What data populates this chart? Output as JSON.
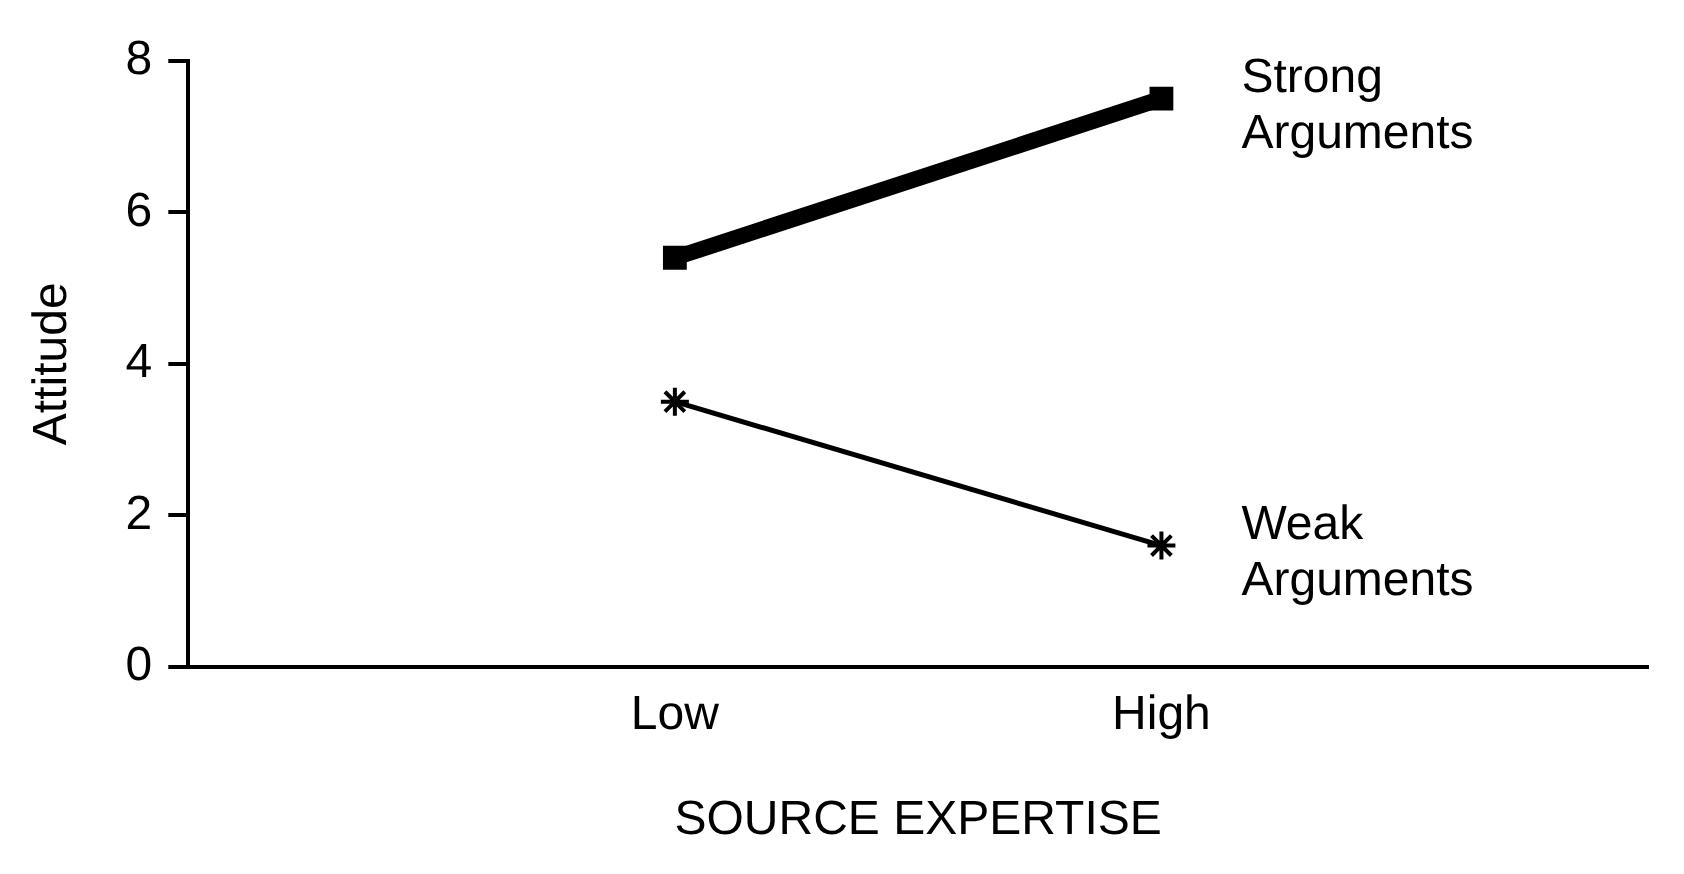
{
  "chart_data": {
    "type": "line",
    "xlabel": "SOURCE EXPERTISE",
    "ylabel": "Attitude",
    "categories": [
      null,
      "Low",
      "High",
      null
    ],
    "ylim": [
      0,
      8
    ],
    "yticks": [
      0,
      2,
      4,
      6,
      8
    ],
    "grid": false,
    "legend": false,
    "series": [
      {
        "name": "Strong Arguments",
        "color": "#000000",
        "marker": "square",
        "values": [
          null,
          5.4,
          7.5,
          null
        ]
      },
      {
        "name": "Weak Arguments",
        "color": "#000000",
        "marker": "cross",
        "values": [
          null,
          3.5,
          1.6,
          null
        ]
      }
    ]
  }
}
